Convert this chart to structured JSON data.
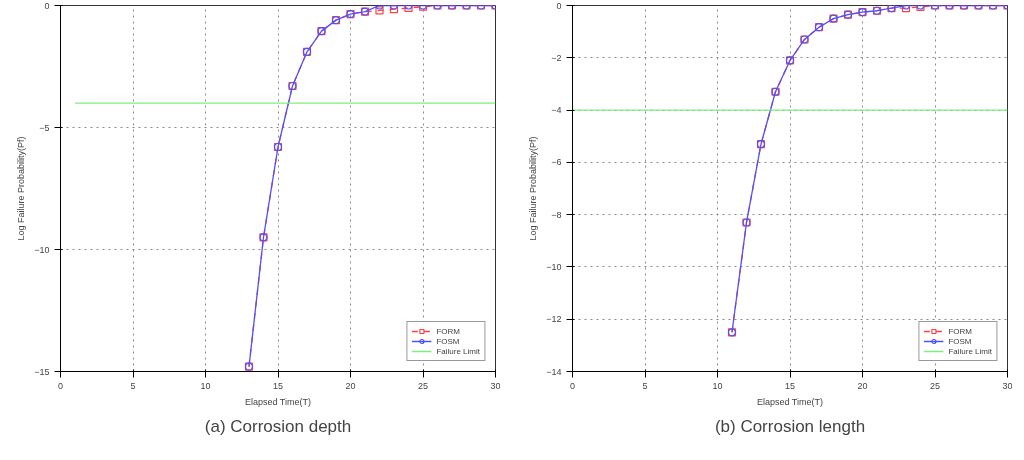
{
  "chart_data": [
    {
      "type": "line",
      "xlabel": "Elapsed Time(T)",
      "ylabel": "Log Failure Probability(Pf)",
      "xlim": [
        0,
        30
      ],
      "ylim": [
        -15,
        0
      ],
      "xticks": [
        0,
        5,
        10,
        15,
        20,
        25,
        30
      ],
      "yticks": [
        -15,
        -10,
        -5,
        0
      ],
      "grid": true,
      "legend": "bottom right",
      "annotations": [
        "(a) Corrosion depth"
      ],
      "series": [
        {
          "name": "FORM",
          "color": "#ff4040",
          "marker": "square",
          "line_style": "dashed",
          "x": [
            13,
            14,
            15,
            16,
            17,
            18,
            19,
            20,
            21,
            22,
            23,
            24,
            25,
            26,
            27,
            28,
            29,
            30
          ],
          "values": [
            -14.8,
            -9.5,
            -5.8,
            -3.3,
            -1.9,
            -1.05,
            -0.6,
            -0.35,
            -0.25,
            -0.2,
            -0.15,
            -0.1,
            -0.05,
            0,
            0,
            0,
            0,
            0
          ]
        },
        {
          "name": "FOSM",
          "color": "#5050ff",
          "marker": "circle",
          "line_style": "solid",
          "x": [
            13,
            14,
            15,
            16,
            17,
            18,
            19,
            20,
            21,
            22,
            23,
            24,
            25,
            26,
            27,
            28,
            29,
            30
          ],
          "values": [
            -14.8,
            -9.5,
            -5.8,
            -3.3,
            -1.9,
            -1.05,
            -0.6,
            -0.35,
            -0.25,
            0,
            0,
            0,
            0,
            0,
            0,
            0,
            0,
            0
          ]
        },
        {
          "name": "Failure Limit",
          "color": "#80ee80",
          "marker": "none",
          "line_style": "solid",
          "x": [
            1,
            30
          ],
          "values": [
            -4,
            -4
          ]
        }
      ]
    },
    {
      "type": "line",
      "xlabel": "Elapsed Time(T)",
      "ylabel": "Log Failure Probability(Pf)",
      "xlim": [
        0,
        30
      ],
      "ylim": [
        -14,
        0
      ],
      "xticks": [
        0,
        5,
        10,
        15,
        20,
        25,
        30
      ],
      "yticks": [
        -14,
        -12,
        -10,
        -8,
        -6,
        -4,
        -2,
        0
      ],
      "grid": true,
      "legend": "bottom right",
      "annotations": [
        "(b) Corrosion length"
      ],
      "series": [
        {
          "name": "FORM",
          "color": "#ff4040",
          "marker": "square",
          "line_style": "dashed",
          "x": [
            11,
            12,
            13,
            14,
            15,
            16,
            17,
            18,
            19,
            20,
            21,
            22,
            23,
            24,
            25,
            26,
            27,
            28,
            29,
            30
          ],
          "values": [
            -12.5,
            -8.3,
            -5.3,
            -3.3,
            -2.1,
            -1.3,
            -0.83,
            -0.5,
            -0.35,
            -0.25,
            -0.2,
            -0.1,
            -0.1,
            -0.05,
            0,
            0,
            0,
            0,
            0,
            0
          ]
        },
        {
          "name": "FOSM",
          "color": "#5050ff",
          "marker": "circle",
          "line_style": "solid",
          "x": [
            11,
            12,
            13,
            14,
            15,
            16,
            17,
            18,
            19,
            20,
            21,
            22,
            23,
            24,
            25,
            26,
            27,
            28,
            29,
            30
          ],
          "values": [
            -12.5,
            -8.3,
            -5.3,
            -3.3,
            -2.1,
            -1.3,
            -0.83,
            -0.5,
            -0.35,
            -0.25,
            -0.2,
            -0.1,
            0,
            0,
            0,
            0,
            0,
            0,
            0,
            0
          ]
        },
        {
          "name": "Failure Limit",
          "color": "#80ee80",
          "marker": "none",
          "line_style": "solid",
          "x": [
            0,
            30
          ],
          "values": [
            -4,
            -4
          ]
        }
      ]
    }
  ]
}
